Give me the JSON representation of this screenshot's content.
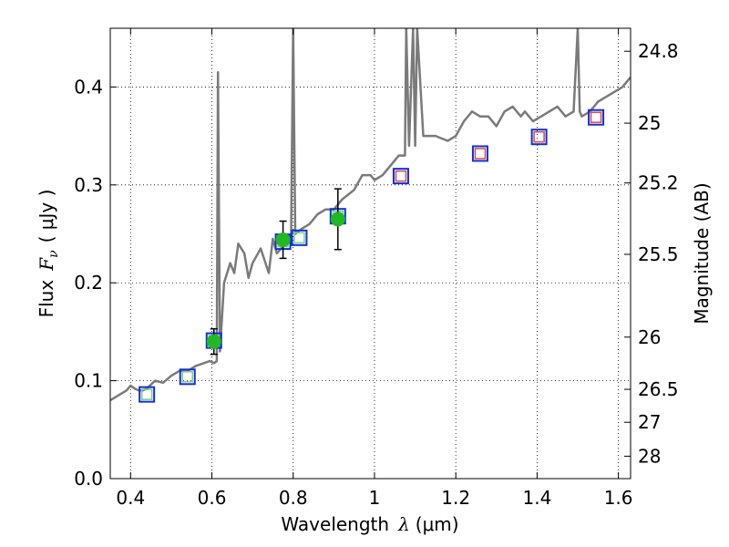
{
  "chart_data": {
    "type": "scatter",
    "title": "",
    "xlabel_text": "Wavelength",
    "xlabel_symbol": "λ",
    "xlabel_unit": "(μm)",
    "ylabel_text": "Flux",
    "ylabel_symbol": "F",
    "ylabel_subscript": "ν",
    "ylabel_unit": "( μJy )",
    "ylabel_right": "Magnitude (AB)",
    "xlim": [
      0.35,
      1.63
    ],
    "ylim": [
      0.0,
      0.46
    ],
    "grid": true,
    "x_ticks": [
      0.4,
      0.6,
      0.8,
      1.0,
      1.2,
      1.4,
      1.6
    ],
    "x_tick_labels": [
      "0.4",
      "0.6",
      "0.8",
      "1",
      "1.2",
      "1.4",
      "1.6"
    ],
    "y_ticks": [
      0.0,
      0.1,
      0.2,
      0.3,
      0.4
    ],
    "y_tick_labels": [
      "0.0",
      "0.1",
      "0.2",
      "0.3",
      "0.4"
    ],
    "mag_ticks": [
      {
        "mag": 24.8,
        "label": "24.8"
      },
      {
        "mag": 25.0,
        "label": "25"
      },
      {
        "mag": 25.2,
        "label": "25.2"
      },
      {
        "mag": 25.5,
        "label": "25.5"
      },
      {
        "mag": 26.0,
        "label": "26"
      },
      {
        "mag": 26.5,
        "label": "26.5"
      },
      {
        "mag": 27.0,
        "label": "27"
      },
      {
        "mag": 28.0,
        "label": "28"
      }
    ],
    "colors": {
      "spectrum": "#7a7a7a",
      "observed": "#22b822",
      "model_box": "#1030d8",
      "green_box": "#7ccf7c",
      "red_box": "#e04848",
      "errorbar": "#000000"
    },
    "series": [
      {
        "name": "model spectrum",
        "kind": "line",
        "x": [
          0.35,
          0.37,
          0.39,
          0.4,
          0.41,
          0.42,
          0.43,
          0.44,
          0.46,
          0.48,
          0.5,
          0.52,
          0.54,
          0.56,
          0.58,
          0.595,
          0.605,
          0.612,
          0.615,
          0.62,
          0.63,
          0.645,
          0.655,
          0.665,
          0.68,
          0.69,
          0.7,
          0.72,
          0.74,
          0.75,
          0.76,
          0.78,
          0.795,
          0.8,
          0.805,
          0.82,
          0.84,
          0.86,
          0.88,
          0.9,
          0.92,
          0.95,
          0.97,
          0.99,
          1.0,
          1.02,
          1.04,
          1.06,
          1.075,
          1.078,
          1.085,
          1.095,
          1.1,
          1.105,
          1.12,
          1.15,
          1.18,
          1.2,
          1.22,
          1.24,
          1.26,
          1.28,
          1.3,
          1.32,
          1.34,
          1.36,
          1.37,
          1.39,
          1.41,
          1.43,
          1.45,
          1.47,
          1.49,
          1.5,
          1.505,
          1.51,
          1.53,
          1.55,
          1.57,
          1.59,
          1.61,
          1.63
        ],
        "y": [
          0.08,
          0.085,
          0.09,
          0.095,
          0.092,
          0.09,
          0.09,
          0.092,
          0.1,
          0.098,
          0.105,
          0.11,
          0.11,
          0.115,
          0.118,
          0.12,
          0.118,
          0.12,
          0.415,
          0.13,
          0.2,
          0.22,
          0.21,
          0.24,
          0.23,
          0.205,
          0.22,
          0.235,
          0.21,
          0.245,
          0.23,
          0.24,
          0.25,
          0.46,
          0.25,
          0.255,
          0.26,
          0.27,
          0.275,
          0.275,
          0.285,
          0.295,
          0.31,
          0.31,
          0.305,
          0.31,
          0.32,
          0.33,
          0.33,
          0.46,
          0.34,
          0.46,
          0.34,
          0.46,
          0.35,
          0.35,
          0.345,
          0.35,
          0.365,
          0.375,
          0.37,
          0.37,
          0.36,
          0.375,
          0.38,
          0.37,
          0.375,
          0.365,
          0.37,
          0.375,
          0.38,
          0.37,
          0.375,
          0.46,
          0.375,
          0.37,
          0.375,
          0.385,
          0.39,
          0.395,
          0.4,
          0.41
        ]
      },
      {
        "name": "model photometry (filled boxes)",
        "kind": "square-markers",
        "x": [
          0.44,
          0.54,
          0.605,
          0.775,
          0.815,
          0.91,
          1.065,
          1.26,
          1.405,
          1.545
        ],
        "y": [
          0.086,
          0.104,
          0.141,
          0.242,
          0.246,
          0.268,
          0.309,
          0.332,
          0.349,
          0.369
        ],
        "inner": [
          "green",
          "green",
          "green",
          "green",
          "green",
          "green",
          "red",
          "red",
          "red",
          "red"
        ]
      },
      {
        "name": "observed photometry",
        "kind": "points-with-errorbars",
        "x": [
          0.605,
          0.775,
          0.91
        ],
        "y": [
          0.14,
          0.244,
          0.265
        ],
        "yerr": [
          0.013,
          0.019,
          0.031
        ]
      }
    ]
  }
}
